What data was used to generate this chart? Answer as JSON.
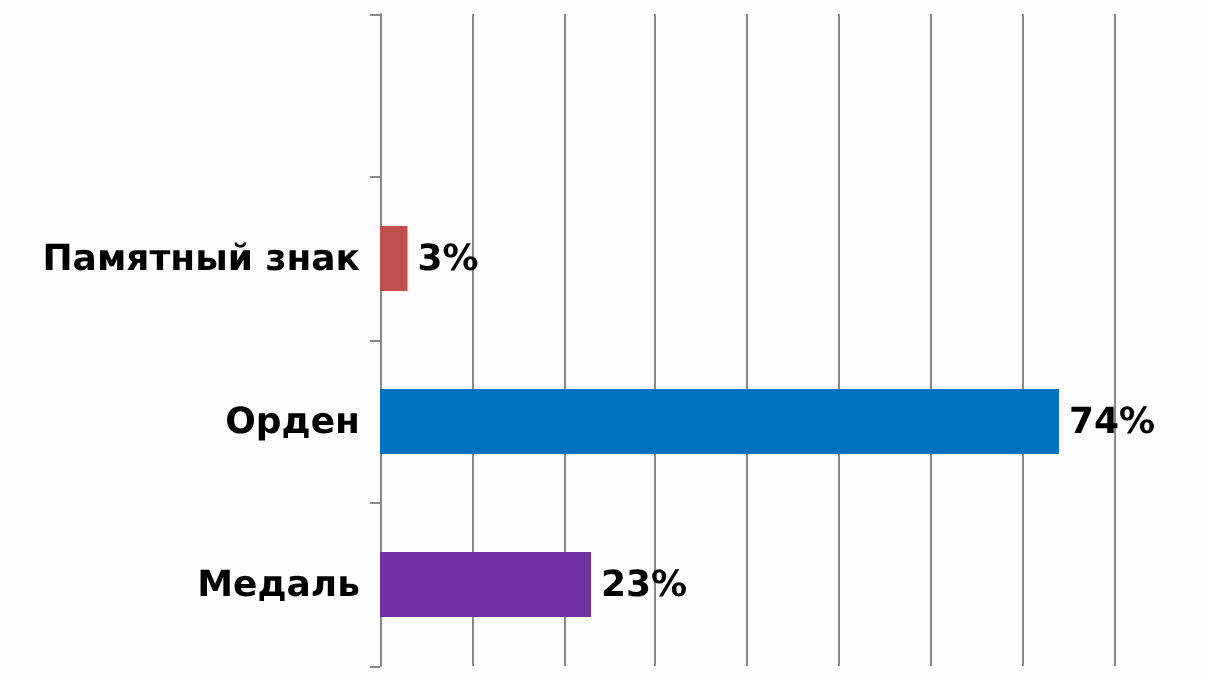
{
  "chart_data": {
    "type": "bar",
    "orientation": "horizontal",
    "categories": [
      null,
      "Памятный знак",
      "Орден",
      "Медаль"
    ],
    "values": [
      null,
      3,
      74,
      23
    ],
    "colors": [
      "#7f7f7f",
      "#c0504d",
      "#0070c0",
      "#7030a0"
    ],
    "value_labels": [
      null,
      "3%",
      "74%",
      "23%"
    ],
    "xlim": [
      0,
      80
    ],
    "xticks": [
      {
        "value": 0,
        "label": null
      },
      {
        "value": 10,
        "label": null
      },
      {
        "value": 20,
        "label": null
      },
      {
        "value": 30,
        "label": null
      },
      {
        "value": 40,
        "label": null
      },
      {
        "value": 50,
        "label": null
      },
      {
        "value": 60,
        "label": null
      },
      {
        "value": 70,
        "label": null
      },
      {
        "value": 80,
        "label": null
      }
    ],
    "tick_labels": "y",
    "grid": "x"
  }
}
